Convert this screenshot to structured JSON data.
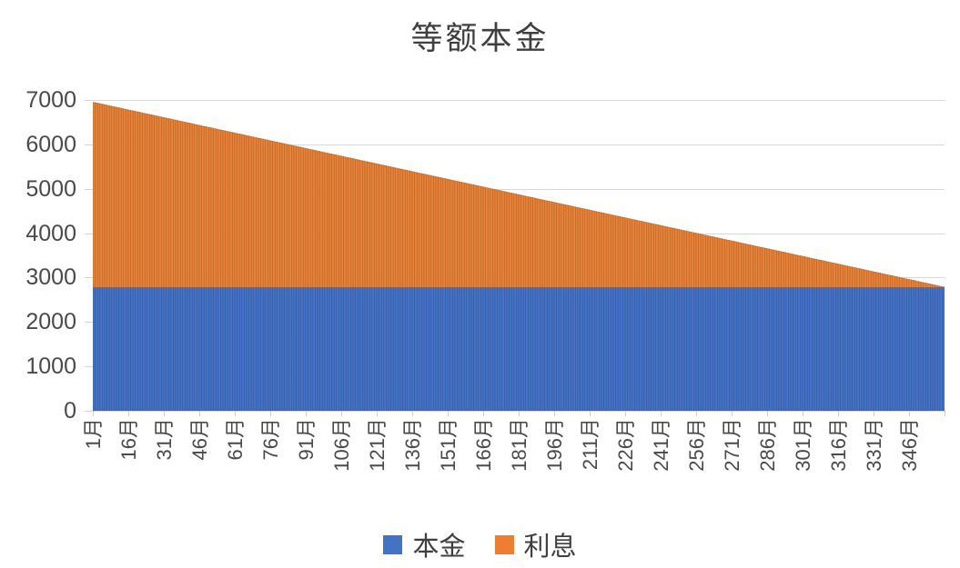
{
  "chart_data": {
    "type": "bar",
    "subtype": "stacked-column",
    "title": "等额本金",
    "xlabel": "",
    "ylabel": "",
    "ylim": [
      0,
      7000
    ],
    "y_ticks": [
      0,
      1000,
      2000,
      3000,
      4000,
      5000,
      6000,
      7000
    ],
    "grid": "horizontal",
    "gridline_color": "#D9D9D9",
    "axis_text_color": "#4A4A4A",
    "months_total": 360,
    "x_tick_interval": 15,
    "x_tick_labels": [
      "1月",
      "16月",
      "31月",
      "46月",
      "61月",
      "76月",
      "91月",
      "106月",
      "121月",
      "136月",
      "151月",
      "166月",
      "181月",
      "196月",
      "211月",
      "226月",
      "241月",
      "256月",
      "271月",
      "286月",
      "301月",
      "316月",
      "331月",
      "346月"
    ],
    "series": [
      {
        "name": "本金",
        "color": "#4472C4",
        "stroke": "#33569E",
        "model": "constant",
        "value": 2778,
        "values_at_ticks": [
          2778,
          2778,
          2778,
          2778,
          2778,
          2778,
          2778,
          2778,
          2778,
          2778,
          2778,
          2778,
          2778,
          2778,
          2778,
          2778,
          2778,
          2778,
          2778,
          2778,
          2778,
          2778,
          2778,
          2778
        ]
      },
      {
        "name": "利息",
        "color": "#E5823B",
        "stroke": "#B5611F",
        "model": "linear-decline",
        "value_at_month_1": 4167,
        "value_at_month_360": 12,
        "values_at_ticks": [
          4167,
          3993,
          3819,
          3646,
          3472,
          3299,
          3125,
          2951,
          2778,
          2604,
          2431,
          2257,
          2083,
          1910,
          1736,
          1563,
          1389,
          1215,
          1042,
          868,
          694,
          521,
          347,
          174
        ]
      }
    ],
    "legend": {
      "position": "bottom",
      "entries": [
        {
          "label": "本金",
          "color": "#4472C4"
        },
        {
          "label": "利息",
          "color": "#ED7D31"
        }
      ]
    }
  }
}
